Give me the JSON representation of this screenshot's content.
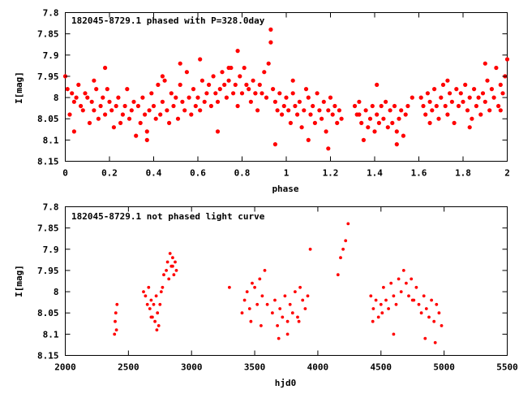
{
  "chart_data": [
    {
      "type": "scatter",
      "title": "182045-8729.1 phased with P=328.0day",
      "xlabel": "phase",
      "ylabel": "I[mag]",
      "xlim": [
        0,
        2
      ],
      "ylim": [
        8.15,
        7.8
      ],
      "y_inverted": true,
      "xticks": [
        "0",
        "0.2",
        "0.4",
        "0.6",
        "0.8",
        "1",
        "1.2",
        "1.4",
        "1.6",
        "1.8",
        "2"
      ],
      "yticks": [
        "7.8",
        "7.85",
        "7.9",
        "7.95",
        "8",
        "8.05",
        "8.1",
        "8.15"
      ],
      "marker_color": "#ff0000",
      "grid": false,
      "series": [
        {
          "x": [
            0.0,
            0.01,
            0.02,
            0.03,
            0.04,
            0.05,
            0.06,
            0.07,
            0.08,
            0.09,
            0.1,
            0.11,
            0.12,
            0.13,
            0.14,
            0.15,
            0.16,
            0.17,
            0.18,
            0.19,
            0.2,
            0.21,
            0.22,
            0.23,
            0.24,
            0.25,
            0.26,
            0.27,
            0.28,
            0.29,
            0.3,
            0.31,
            0.32,
            0.33,
            0.34,
            0.35,
            0.36,
            0.37,
            0.38,
            0.39,
            0.4,
            0.41,
            0.42,
            0.43,
            0.44,
            0.45,
            0.46,
            0.47,
            0.48,
            0.49,
            0.5,
            0.51,
            0.52,
            0.53,
            0.54,
            0.55,
            0.56,
            0.57,
            0.58,
            0.59,
            0.6,
            0.61,
            0.62,
            0.63,
            0.64,
            0.65,
            0.66,
            0.67,
            0.68,
            0.69,
            0.7,
            0.71,
            0.72,
            0.73,
            0.74,
            0.75,
            0.76,
            0.77,
            0.78,
            0.79,
            0.8,
            0.81,
            0.82,
            0.83,
            0.84,
            0.85,
            0.86,
            0.87,
            0.88,
            0.89,
            0.9,
            0.91,
            0.92,
            0.93,
            0.94,
            0.95,
            0.96,
            0.97,
            0.98,
            0.99,
            1.0,
            1.01,
            1.02,
            1.03,
            1.04,
            1.05,
            1.06,
            1.07,
            1.08,
            1.09,
            1.1,
            1.11,
            1.12,
            1.13,
            1.14,
            1.15,
            1.16,
            1.17,
            1.18,
            1.19,
            1.2,
            1.21,
            1.22,
            1.23,
            1.24,
            1.25,
            1.31,
            1.32,
            1.33,
            1.34,
            1.35,
            1.36,
            1.37,
            1.38,
            1.39,
            1.4,
            1.41,
            1.42,
            1.43,
            1.44,
            1.45,
            1.46,
            1.47,
            1.48,
            1.49,
            1.5,
            1.51,
            1.52,
            1.53,
            1.54,
            1.55,
            1.61,
            1.62,
            1.63,
            1.64,
            1.65,
            1.66,
            1.67,
            1.68,
            1.69,
            1.7,
            1.71,
            1.72,
            1.73,
            1.74,
            1.75,
            1.76,
            1.77,
            1.78,
            1.79,
            1.8,
            1.81,
            1.82,
            1.83,
            1.84,
            1.85,
            1.86,
            1.87,
            1.88,
            1.89,
            1.9,
            1.91,
            1.92,
            1.93,
            1.94,
            1.95,
            1.96,
            1.97,
            1.98,
            1.99,
            2.0,
            0.04,
            0.13,
            0.18,
            0.37,
            0.44,
            0.52,
            0.61,
            0.69,
            0.74,
            0.78,
            0.86,
            0.93,
            0.95,
            1.03,
            1.1,
            1.19,
            1.33,
            1.41,
            1.5,
            1.57,
            1.65,
            1.73,
            1.83,
            1.9,
            1.97
          ],
          "y": [
            7.95,
            7.98,
            8.04,
            7.99,
            8.01,
            8.0,
            7.97,
            8.02,
            8.03,
            7.99,
            8.0,
            8.06,
            8.01,
            8.03,
            7.98,
            8.05,
            8.02,
            8.0,
            8.04,
            7.98,
            8.01,
            8.03,
            8.07,
            8.02,
            8.0,
            8.06,
            8.04,
            8.02,
            7.98,
            8.05,
            8.03,
            8.01,
            8.09,
            8.02,
            8.06,
            8.0,
            8.04,
            8.08,
            8.03,
            7.99,
            8.02,
            8.05,
            7.97,
            8.04,
            8.01,
            7.96,
            8.03,
            8.06,
            7.99,
            8.02,
            8.0,
            8.05,
            7.97,
            8.01,
            8.03,
            7.94,
            8.0,
            8.04,
            7.98,
            8.02,
            8.0,
            8.03,
            7.96,
            8.01,
            7.99,
            7.97,
            8.02,
            7.95,
            7.99,
            8.01,
            7.98,
            7.94,
            7.97,
            8.0,
            7.96,
            7.93,
            7.99,
            7.97,
            8.02,
            7.95,
            7.99,
            7.93,
            7.97,
            7.98,
            8.01,
            7.96,
            7.99,
            8.03,
            7.97,
            7.99,
            7.94,
            8.0,
            7.92,
            7.87,
            7.98,
            8.01,
            8.03,
            7.99,
            8.04,
            8.02,
            8.0,
            8.03,
            8.06,
            7.99,
            8.02,
            8.04,
            8.01,
            8.07,
            8.03,
            7.98,
            8.0,
            8.04,
            8.02,
            8.06,
            7.99,
            8.03,
            8.05,
            8.01,
            8.08,
            8.03,
            8.0,
            8.04,
            8.02,
            8.06,
            8.03,
            8.05,
            8.02,
            8.04,
            8.01,
            8.06,
            8.1,
            8.03,
            8.07,
            8.05,
            8.02,
            8.08,
            8.04,
            8.06,
            8.02,
            8.05,
            8.01,
            8.07,
            8.03,
            8.06,
            8.02,
            8.08,
            8.05,
            8.03,
            8.09,
            8.04,
            8.02,
            8.0,
            8.02,
            8.04,
            7.99,
            8.01,
            8.03,
            7.98,
            8.02,
            8.05,
            8.0,
            7.97,
            8.02,
            8.04,
            7.99,
            8.01,
            8.06,
            7.98,
            8.02,
            7.99,
            8.01,
            7.97,
            8.03,
            8.0,
            8.05,
            7.98,
            8.02,
            8.0,
            8.04,
            7.99,
            8.01,
            7.96,
            8.03,
            7.98,
            8.0,
            7.93,
            8.02,
            7.97,
            7.99,
            7.95,
            7.91,
            8.08,
            7.96,
            7.93,
            8.1,
            7.95,
            7.92,
            7.91,
            8.08,
            7.93,
            7.89,
            7.99,
            7.84,
            8.11,
            7.96,
            8.1,
            8.12,
            8.04,
            7.97,
            8.11,
            8.0,
            8.06,
            7.96,
            8.07,
            7.92,
            8.03
          ]
        }
      ]
    },
    {
      "type": "scatter",
      "title": "182045-8729.1 not phased light curve",
      "xlabel": "hjd0",
      "ylabel": "I[mag]",
      "xlim": [
        2000,
        5500
      ],
      "ylim": [
        8.15,
        7.8
      ],
      "y_inverted": true,
      "xticks": [
        "2000",
        "2500",
        "3000",
        "3500",
        "4000",
        "4500",
        "5000",
        "5500"
      ],
      "yticks": [
        "7.8",
        "7.85",
        "7.9",
        "7.95",
        "8",
        "8.05",
        "8.1",
        "8.15"
      ],
      "marker_color": "#ff0000",
      "grid": false,
      "series": [
        {
          "x": [
            2390,
            2395,
            2400,
            2405,
            2410,
            2620,
            2635,
            2650,
            2660,
            2670,
            2680,
            2690,
            2700,
            2710,
            2720,
            2730,
            2740,
            2750,
            2760,
            2770,
            2780,
            2800,
            2810,
            2820,
            2830,
            2840,
            2850,
            2860,
            2870,
            2880,
            3300,
            3400,
            3420,
            3440,
            3460,
            3480,
            3500,
            3520,
            3540,
            3560,
            3580,
            3600,
            3640,
            3660,
            3680,
            3700,
            3720,
            3740,
            3760,
            3780,
            3800,
            3820,
            3840,
            3860,
            3880,
            3900,
            3920,
            3940,
            4160,
            4180,
            4200,
            4220,
            4240,
            4420,
            4440,
            4460,
            4480,
            4500,
            4520,
            4540,
            4560,
            4580,
            4600,
            4620,
            4640,
            4660,
            4680,
            4700,
            4720,
            4740,
            4760,
            4780,
            4800,
            4820,
            4840,
            4860,
            4880,
            4900,
            4920,
            4940,
            4960,
            4980,
            4435,
            4510,
            4600,
            4750,
            4850,
            4930,
            3470,
            3550,
            3690,
            3760,
            3850,
            2680,
            2725,
            2850
          ],
          "y": [
            8.1,
            8.07,
            8.05,
            8.09,
            8.03,
            8.0,
            8.01,
            8.03,
            7.99,
            8.04,
            8.02,
            8.06,
            8.03,
            8.07,
            8.01,
            8.05,
            8.08,
            8.03,
            8.0,
            7.99,
            7.96,
            7.95,
            7.93,
            7.97,
            7.91,
            7.94,
            7.92,
            7.96,
            7.93,
            7.95,
            7.99,
            8.05,
            8.02,
            8.0,
            8.04,
            7.98,
            7.99,
            8.03,
            7.97,
            8.01,
            7.95,
            8.03,
            8.05,
            8.02,
            8.08,
            8.04,
            8.06,
            8.01,
            8.07,
            8.03,
            8.05,
            8.0,
            8.06,
            7.99,
            8.02,
            8.04,
            8.01,
            7.9,
            7.96,
            7.92,
            7.9,
            7.88,
            7.84,
            8.01,
            8.04,
            8.02,
            8.06,
            8.03,
            7.99,
            8.02,
            8.04,
            7.98,
            8.01,
            8.03,
            7.97,
            8.0,
            7.95,
            7.98,
            8.01,
            7.97,
            8.02,
            7.99,
            8.03,
            8.05,
            8.01,
            8.04,
            8.06,
            8.02,
            8.07,
            8.03,
            8.05,
            8.08,
            8.07,
            8.05,
            8.1,
            8.02,
            8.11,
            8.12,
            8.07,
            8.08,
            8.11,
            8.1,
            8.07,
            8.06,
            8.09,
            7.94
          ]
        }
      ]
    }
  ]
}
